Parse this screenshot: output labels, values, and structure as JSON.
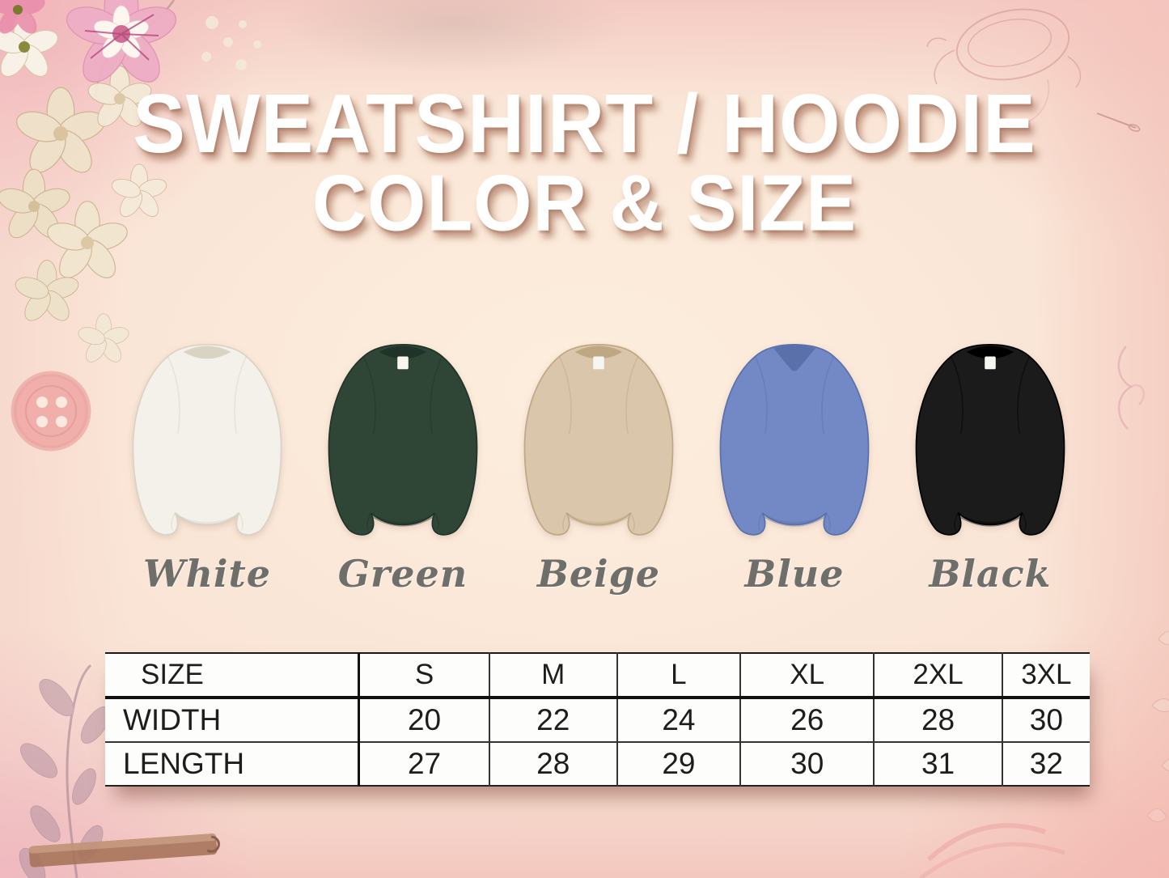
{
  "title": {
    "line1": "SWEATSHIRT / HOODIE",
    "line2": "COLOR & SIZE"
  },
  "colors": [
    {
      "name": "White",
      "hex": "#f3f1ea",
      "shade": "#d9d3c4",
      "neck": "crew",
      "tag": false
    },
    {
      "name": "Green",
      "hex": "#2f4636",
      "shade": "#203329",
      "neck": "crew",
      "tag": true
    },
    {
      "name": "Beige",
      "hex": "#d9c6ab",
      "shade": "#bfa784",
      "neck": "crew",
      "tag": true
    },
    {
      "name": "Blue",
      "hex": "#7389c5",
      "shade": "#5a70ab",
      "neck": "v",
      "tag": false
    },
    {
      "name": "Black",
      "hex": "#1b1b1b",
      "shade": "#000000",
      "neck": "crew",
      "tag": true
    }
  ],
  "size_chart": {
    "header": [
      "SIZE",
      "S",
      "M",
      "L",
      "XL",
      "2XL",
      "3XL"
    ],
    "rows": [
      {
        "label": "WIDTH",
        "values": [
          "20",
          "22",
          "24",
          "26",
          "28",
          "30"
        ]
      },
      {
        "label": "LENGTH",
        "values": [
          "27",
          "28",
          "29",
          "30",
          "31",
          "32"
        ]
      }
    ]
  },
  "chart_data": {
    "type": "table",
    "title": "SWEATSHIRT / HOODIE COLOR & SIZE",
    "columns": [
      "SIZE",
      "S",
      "M",
      "L",
      "XL",
      "2XL",
      "3XL"
    ],
    "rows": [
      [
        "WIDTH",
        20,
        22,
        24,
        26,
        28,
        30
      ],
      [
        "LENGTH",
        27,
        28,
        29,
        30,
        31,
        32
      ]
    ],
    "color_options": [
      "White",
      "Green",
      "Beige",
      "Blue",
      "Black"
    ]
  },
  "style_colors": {
    "background_center": "#fdeedd",
    "background_edge_pink": "#f2c2bd",
    "title_text": "#ffffff",
    "title_shadow": "#985d46",
    "label_text": "#6e6e6b",
    "table_text": "#1d1d1d",
    "table_background": "#fdfdfb"
  },
  "decorations": {
    "top_left": "watercolor flower cluster",
    "top_right": "hand mirror sketch and needle",
    "left": "pink sewing button",
    "bottom_left": "leaf branch sketch",
    "bottom": "wooden ruler",
    "bottom_right": "pink thread arcs"
  }
}
